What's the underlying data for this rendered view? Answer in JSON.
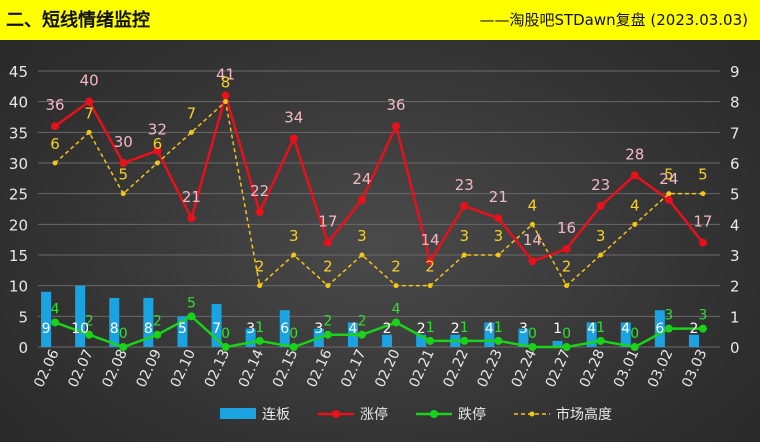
{
  "header": {
    "title": "二、短线情绪监控",
    "credit": "——淘股吧STDawn复盘 (2023.03.03)"
  },
  "chart_data": {
    "type": "bar",
    "categories": [
      "02.06",
      "02.07",
      "02.08",
      "02.09",
      "02.10",
      "02.13",
      "02.14",
      "02.15",
      "02.16",
      "02.17",
      "02.20",
      "02.21",
      "02.22",
      "02.23",
      "02.24",
      "02.27",
      "02.28",
      "03.01",
      "03.02",
      "03.03"
    ],
    "ylim_left": [
      0,
      45
    ],
    "ylim_right": [
      0,
      9
    ],
    "left_ticks": [
      "0",
      "5",
      "10",
      "15",
      "20",
      "25",
      "30",
      "35",
      "40",
      "45"
    ],
    "right_ticks": [
      "0",
      "1",
      "2",
      "3",
      "4",
      "5",
      "6",
      "7",
      "8",
      "9"
    ],
    "series": [
      {
        "name": "连板",
        "type": "bar",
        "axis": "left",
        "color": "#1aa3e0",
        "values": [
          9,
          10,
          8,
          8,
          5,
          7,
          3,
          6,
          3,
          4,
          2,
          2,
          2,
          4,
          3,
          1,
          4,
          4,
          6,
          2
        ]
      },
      {
        "name": "涨停",
        "type": "line",
        "axis": "left",
        "color": "#e8101a",
        "values": [
          36,
          40,
          30,
          32,
          21,
          41,
          22,
          34,
          17,
          24,
          36,
          14,
          23,
          21,
          14,
          16,
          23,
          28,
          24,
          17
        ]
      },
      {
        "name": "跌停",
        "type": "line",
        "axis": "left",
        "color": "#1ad21a",
        "values": [
          4,
          2,
          0,
          2,
          5,
          0,
          1,
          0,
          2,
          2,
          4,
          1,
          1,
          1,
          0,
          0,
          1,
          0,
          3,
          3
        ]
      },
      {
        "name": "市场高度",
        "type": "dashed-line",
        "axis": "right",
        "color": "#f5c518",
        "values": [
          6,
          7,
          5,
          6,
          7,
          8,
          2,
          3,
          2,
          3,
          2,
          2,
          3,
          3,
          4,
          2,
          3,
          4,
          5,
          5
        ]
      }
    ],
    "legend_position": "bottom",
    "grid": true
  }
}
